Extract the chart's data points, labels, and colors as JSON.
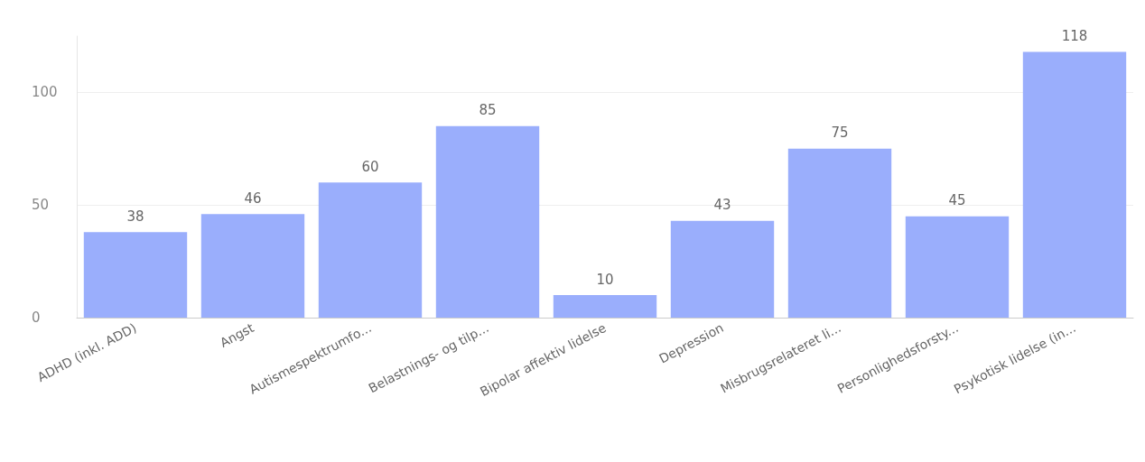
{
  "chart_data": {
    "type": "bar",
    "categories": [
      "ADHD (inkl. ADD)",
      "Angst",
      "Autismespektrumfo...",
      "Belastnings- og tilp...",
      "Bipolar affektiv lidelse",
      "Depression",
      "Misbrugsrelateret li...",
      "Personlighedsforsty...",
      "Psykotisk lidelse (in..."
    ],
    "values": [
      38,
      46,
      60,
      85,
      10,
      43,
      75,
      45,
      118
    ],
    "color": "#9aaefc",
    "ylim": [
      0,
      125
    ],
    "yticks": [
      0,
      50,
      100
    ],
    "grid": "y",
    "data_labels": true
  }
}
